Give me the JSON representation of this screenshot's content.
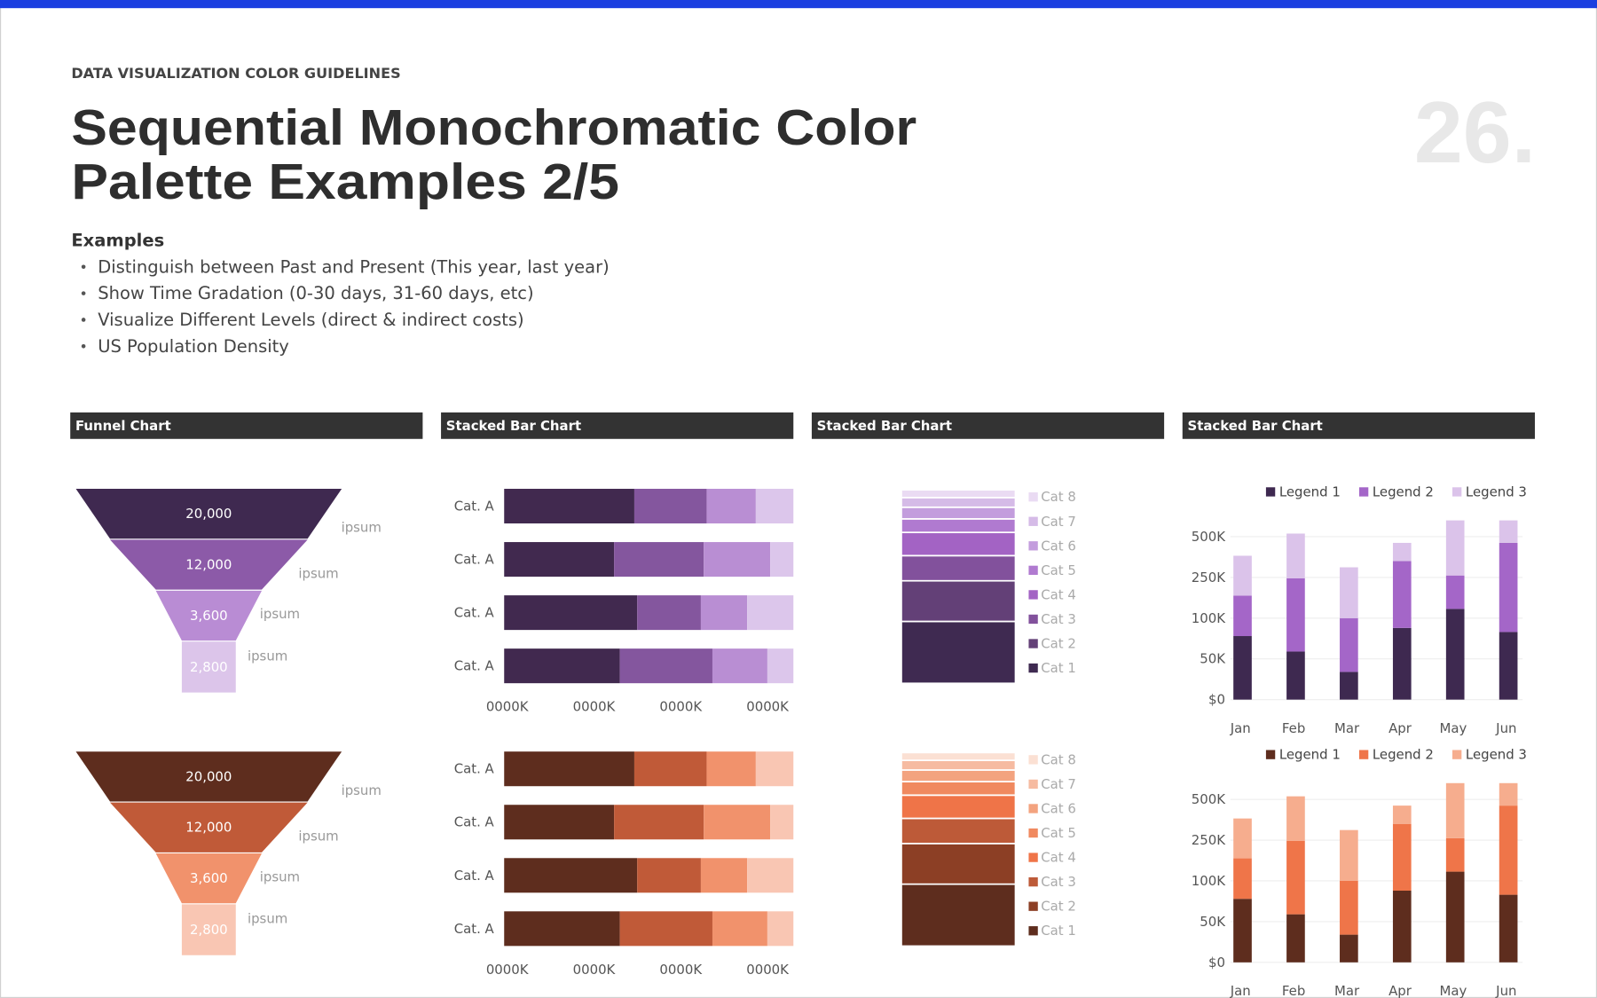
{
  "header": {
    "eyebrow": "DATA VISUALIZATION COLOR GUIDELINES",
    "title": [
      "Sequential Monochromatic Color",
      "Palette Examples 2/5"
    ],
    "page_number": "26."
  },
  "examples": {
    "heading": "Examples",
    "items": [
      "Distinguish between Past and Present (This year, last year)",
      "Show Time Gradation (0-30 days, 31-60 days, etc)",
      "Visualize Different Levels (direct & indirect costs)",
      "US Population Density"
    ]
  },
  "panels": [
    "Funnel Chart",
    "Stacked Bar Chart",
    "Stacked Bar Chart",
    "Stacked Bar Chart"
  ],
  "chart_data": [
    {
      "type": "funnel",
      "values": [
        20000,
        12000,
        3600,
        2800
      ],
      "value_labels": [
        "20,000",
        "12,000",
        "3,600",
        "2,800"
      ],
      "labels": [
        "ipsum",
        "ipsum",
        "ipsum",
        "ipsum"
      ],
      "colors": [
        "#3f2950",
        "#8c5aa8",
        "#b98cd4",
        "#dcc5ea"
      ]
    },
    {
      "type": "hbar",
      "categories": [
        "Cat. A",
        "Cat. A",
        "Cat. A",
        "Cat. A"
      ],
      "series": [
        {
          "color": "#41294f",
          "values": [
            45,
            38,
            46,
            40
          ]
        },
        {
          "color": "#84569e",
          "values": [
            25,
            31,
            22,
            32
          ]
        },
        {
          "color": "#b98ed3",
          "values": [
            17,
            23,
            16,
            19
          ]
        },
        {
          "color": "#dcc6eb",
          "values": [
            13,
            8,
            16,
            9
          ]
        }
      ],
      "xlim": [
        0,
        100
      ],
      "xticks": [
        {
          "value": 0,
          "label": "0000K"
        },
        {
          "value": 30,
          "label": "0000K"
        },
        {
          "value": 60,
          "label": "0000K"
        },
        {
          "value": 90,
          "label": "0000K"
        }
      ]
    },
    {
      "type": "stacked_column",
      "ylim": [
        0,
        100
      ],
      "series": [
        {
          "name": "Cat 1",
          "color": "#3f2a51",
          "values": [
            32
          ]
        },
        {
          "name": "Cat 2",
          "color": "#634077",
          "values": [
            21
          ]
        },
        {
          "name": "Cat 3",
          "color": "#82519c",
          "values": [
            13
          ]
        },
        {
          "name": "Cat 4",
          "color": "#a363c4",
          "values": [
            12
          ]
        },
        {
          "name": "Cat 5",
          "color": "#b07ad0",
          "values": [
            7
          ]
        },
        {
          "name": "Cat 6",
          "color": "#c39ddd",
          "values": [
            6
          ]
        },
        {
          "name": "Cat 7",
          "color": "#d5bbe7",
          "values": [
            5
          ]
        },
        {
          "name": "Cat 8",
          "color": "#eadbf3",
          "values": [
            4
          ]
        }
      ]
    },
    {
      "type": "stacked_bar",
      "categories": [
        "Jan",
        "Feb",
        "Mar",
        "Apr",
        "May",
        "Jun"
      ],
      "scale": "piecewise",
      "grid": true,
      "legend": "top",
      "ylim": [
        0,
        600000
      ],
      "yticks": [
        {
          "value": 0,
          "label": "$0"
        },
        {
          "value": 50000,
          "label": "50K"
        },
        {
          "value": 100000,
          "label": "100K"
        },
        {
          "value": 250000,
          "label": "250K"
        },
        {
          "value": 500000,
          "label": "500K"
        }
      ],
      "series": [
        {
          "name": "Legend 1",
          "color": "#3e2950",
          "values": [
            78000,
            59000,
            34000,
            88000,
            134000,
            83000
          ]
        },
        {
          "name": "Legend 2",
          "color": "#a466c8",
          "values": [
            105000,
            188000,
            66000,
            262000,
            128000,
            379000
          ]
        },
        {
          "name": "Legend 3",
          "color": "#dbc3ea",
          "values": [
            200000,
            272000,
            212000,
            112000,
            338000,
            138000
          ]
        }
      ]
    },
    {
      "type": "funnel",
      "values": [
        20000,
        12000,
        3600,
        2800
      ],
      "value_labels": [
        "20,000",
        "12,000",
        "3,600",
        "2,800"
      ],
      "labels": [
        "ipsum",
        "ipsum",
        "ipsum",
        "ipsum"
      ],
      "colors": [
        "#5e2d1e",
        "#c05a38",
        "#f1926c",
        "#f9c6b3"
      ]
    },
    {
      "type": "hbar",
      "categories": [
        "Cat. A",
        "Cat. A",
        "Cat. A",
        "Cat. A"
      ],
      "series": [
        {
          "color": "#5e2d1e",
          "values": [
            45,
            38,
            46,
            40
          ]
        },
        {
          "color": "#c05a38",
          "values": [
            25,
            31,
            22,
            32
          ]
        },
        {
          "color": "#f1926c",
          "values": [
            17,
            23,
            16,
            19
          ]
        },
        {
          "color": "#f9c6b3",
          "values": [
            13,
            8,
            16,
            9
          ]
        }
      ],
      "xlim": [
        0,
        100
      ],
      "xticks": [
        {
          "value": 0,
          "label": "0000K"
        },
        {
          "value": 30,
          "label": "0000K"
        },
        {
          "value": 60,
          "label": "0000K"
        },
        {
          "value": 90,
          "label": "0000K"
        }
      ]
    },
    {
      "type": "stacked_column",
      "ylim": [
        0,
        100
      ],
      "series": [
        {
          "name": "Cat 1",
          "color": "#5e2d1e",
          "values": [
            32
          ]
        },
        {
          "name": "Cat 2",
          "color": "#8c3f25",
          "values": [
            21
          ]
        },
        {
          "name": "Cat 3",
          "color": "#bd5a38",
          "values": [
            13
          ]
        },
        {
          "name": "Cat 4",
          "color": "#ef7448",
          "values": [
            12
          ]
        },
        {
          "name": "Cat 5",
          "color": "#f0895f",
          "values": [
            7
          ]
        },
        {
          "name": "Cat 6",
          "color": "#f3a37f",
          "values": [
            6
          ]
        },
        {
          "name": "Cat 7",
          "color": "#f6bba1",
          "values": [
            5
          ]
        },
        {
          "name": "Cat 8",
          "color": "#fbe0d3",
          "values": [
            4
          ]
        }
      ]
    },
    {
      "type": "stacked_bar",
      "categories": [
        "Jan",
        "Feb",
        "Mar",
        "Apr",
        "May",
        "Jun"
      ],
      "scale": "piecewise",
      "grid": true,
      "legend": "top",
      "ylim": [
        0,
        600000
      ],
      "yticks": [
        {
          "value": 0,
          "label": "$0"
        },
        {
          "value": 50000,
          "label": "50K"
        },
        {
          "value": 100000,
          "label": "100K"
        },
        {
          "value": 250000,
          "label": "250K"
        },
        {
          "value": 500000,
          "label": "500K"
        }
      ],
      "series": [
        {
          "name": "Legend 1",
          "color": "#5e2d1e",
          "values": [
            78000,
            59000,
            34000,
            88000,
            134000,
            83000
          ]
        },
        {
          "name": "Legend 2",
          "color": "#ef7549",
          "values": [
            105000,
            188000,
            66000,
            262000,
            128000,
            379000
          ]
        },
        {
          "name": "Legend 3",
          "color": "#f6ad8e",
          "values": [
            200000,
            272000,
            212000,
            112000,
            338000,
            138000
          ]
        }
      ]
    }
  ]
}
